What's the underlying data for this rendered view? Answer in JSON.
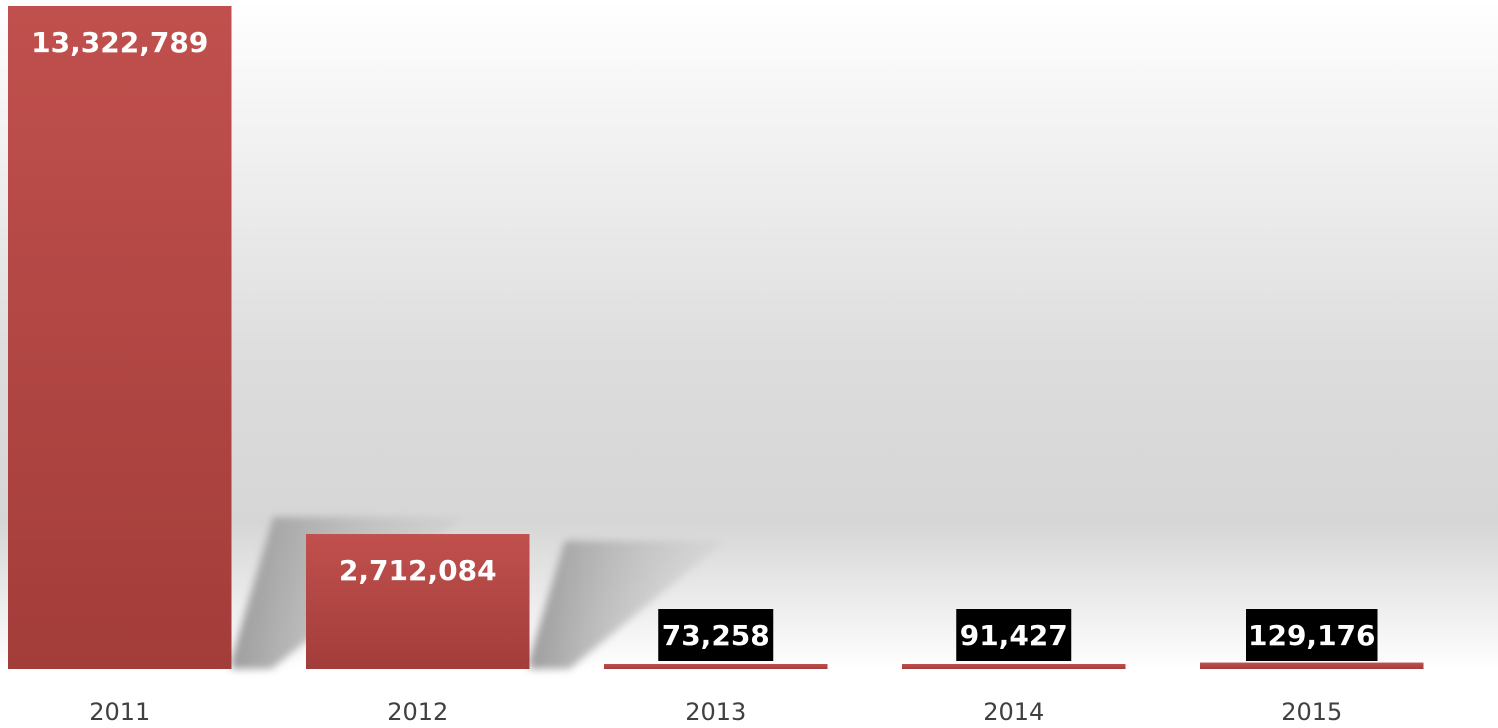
{
  "chart_data": {
    "type": "bar",
    "categories": [
      "2011",
      "2012",
      "2013",
      "2014",
      "2015"
    ],
    "values": [
      13322789,
      2712084,
      73258,
      91427,
      129176
    ],
    "labels": [
      "13,322,789",
      "2,712,084",
      "73,258",
      "91,427",
      "129,176"
    ],
    "title": "",
    "xlabel": "",
    "ylabel": "",
    "ylim": [
      0,
      13322789
    ],
    "grid": false,
    "legend": "none",
    "colors": {
      "bar_top": "#c0504d",
      "bar_bottom": "#a33d3a",
      "label_text_on_bar": "#ffffff",
      "label_box_fill": "#000000",
      "label_box_text": "#ffffff",
      "tick_text": "#404040",
      "shadow": "#8c8c8c",
      "background_light": "#ffffff",
      "background_mid": "#d9d9d9"
    }
  }
}
